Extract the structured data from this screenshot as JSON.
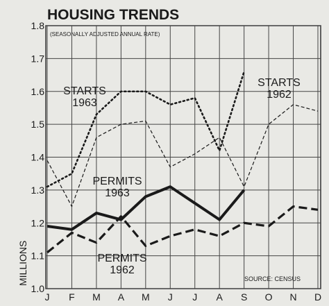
{
  "chart_data": {
    "type": "line",
    "title": "HOUSING TRENDS",
    "subtitle": "(SEASONALLY ADJUSTED ANNUAL RATE)",
    "y_label": "MILLIONS",
    "source": "SOURCE: CENSUS",
    "categories": [
      "J",
      "F",
      "M",
      "A",
      "M",
      "J",
      "J",
      "A",
      "S",
      "O",
      "N",
      "D"
    ],
    "ylim": [
      1.0,
      1.8
    ],
    "yticks": [
      {
        "value": 1.0,
        "label": "1.0"
      },
      1.1,
      1.2,
      1.3,
      1.4,
      1.5,
      1.6,
      1.7,
      1.8
    ],
    "grid": true,
    "series": [
      {
        "name": "STARTS 1963",
        "color": "#1a1a1a",
        "style": "dotted",
        "values": [
          1.31,
          1.35,
          1.53,
          1.6,
          1.6,
          1.56,
          1.58,
          1.42,
          1.66,
          null,
          null,
          null
        ]
      },
      {
        "name": "STARTS 1962",
        "color": "#1a1a1a",
        "style": "thin-dashed",
        "values": [
          1.39,
          1.25,
          1.46,
          1.5,
          1.51,
          1.37,
          1.41,
          1.46,
          1.31,
          1.5,
          1.56,
          1.54
        ]
      },
      {
        "name": "PERMITS 1963",
        "color": "#1a1a1a",
        "style": "thick-solid",
        "values": [
          1.19,
          1.18,
          1.23,
          1.21,
          1.28,
          1.31,
          1.26,
          1.21,
          1.3,
          null,
          null,
          null
        ]
      },
      {
        "name": "PERMITS 1962",
        "color": "#1a1a1a",
        "style": "thick-dashed",
        "values": [
          1.11,
          1.17,
          1.14,
          1.22,
          1.13,
          1.16,
          1.18,
          1.16,
          1.2,
          1.19,
          1.25,
          1.24
        ]
      }
    ]
  }
}
